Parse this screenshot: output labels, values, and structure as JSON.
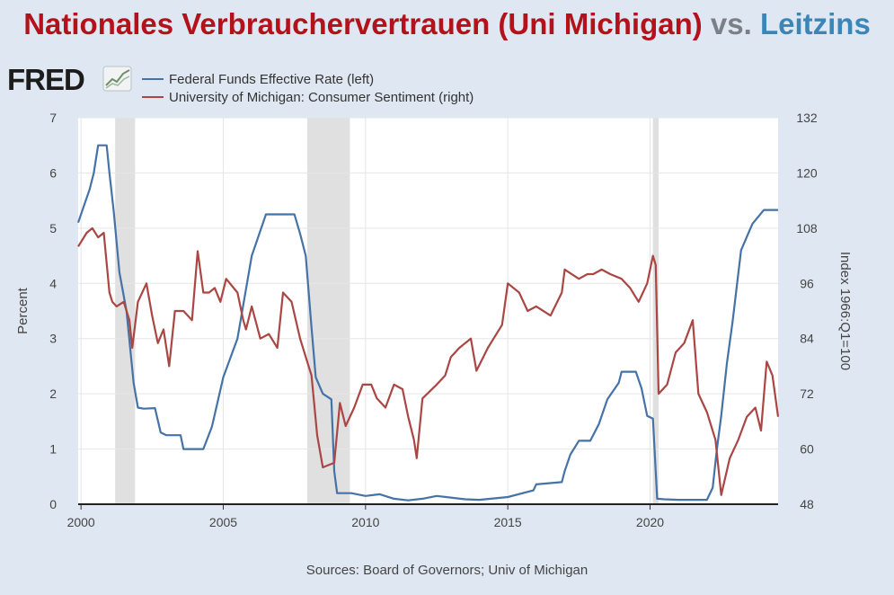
{
  "header": {
    "title_part1": "Nationales Verbrauchervertrauen (Uni Michigan)",
    "title_part2": "vs.",
    "title_part3": "Leitzins"
  },
  "logo": {
    "text": "FRED",
    "icon": "line-chart-icon"
  },
  "source": "Sources: Board of Governors; Univ of Michigan",
  "colors": {
    "title_red": "#b3121a",
    "title_gray": "#7b7f86",
    "title_blue": "#3a86b7",
    "fedfunds": "#4572a7",
    "sentiment": "#aa4643",
    "recession": "#e0e0e0"
  },
  "chart_data": {
    "type": "line",
    "left_axis": {
      "label": "Percent",
      "range": [
        0,
        7
      ],
      "ticks": [
        "0",
        "1",
        "2",
        "3",
        "4",
        "5",
        "6",
        "7"
      ]
    },
    "right_axis": {
      "label": "Index 1966:Q1=100",
      "range": [
        48,
        132
      ],
      "ticks": [
        "48",
        "60",
        "72",
        "84",
        "96",
        "108",
        "120",
        "132"
      ]
    },
    "x_axis": {
      "range": [
        1999.9,
        2024.5
      ],
      "ticks": [
        {
          "x": 2000,
          "label": "2000"
        },
        {
          "x": 2005,
          "label": "2005"
        },
        {
          "x": 2010,
          "label": "2010"
        },
        {
          "x": 2015,
          "label": "2015"
        },
        {
          "x": 2020,
          "label": "2020"
        }
      ]
    },
    "grid": true,
    "recessions": [
      [
        2001.2,
        2001.9
      ],
      [
        2007.95,
        2009.45
      ],
      [
        2020.1,
        2020.3
      ]
    ],
    "series": [
      {
        "name": "Federal Funds Effective Rate (left)",
        "axis": "left",
        "x": [
          1999.9,
          2000.1,
          2000.3,
          2000.45,
          2000.6,
          2000.9,
          2001.0,
          2001.15,
          2001.35,
          2001.6,
          2001.85,
          2002.0,
          2002.2,
          2002.6,
          2002.8,
          2003.0,
          2003.5,
          2003.6,
          2004.0,
          2004.3,
          2004.6,
          2005.0,
          2005.5,
          2006.0,
          2006.5,
          2007.0,
          2007.5,
          2007.7,
          2007.9,
          2008.1,
          2008.25,
          2008.5,
          2008.8,
          2008.9,
          2009.0,
          2009.5,
          2010.0,
          2010.5,
          2011.0,
          2011.5,
          2012.0,
          2012.5,
          2013.0,
          2013.5,
          2014.0,
          2015.0,
          2015.9,
          2016.0,
          2016.9,
          2017.0,
          2017.2,
          2017.5,
          2017.9,
          2018.2,
          2018.5,
          2018.9,
          2019.0,
          2019.5,
          2019.7,
          2019.9,
          2020.1,
          2020.25,
          2020.5,
          2021.0,
          2021.5,
          2022.0,
          2022.2,
          2022.35,
          2022.5,
          2022.7,
          2022.9,
          2023.2,
          2023.6,
          2024.0,
          2024.5
        ],
        "values": [
          5.1,
          5.4,
          5.7,
          6.0,
          6.5,
          6.5,
          6.0,
          5.3,
          4.2,
          3.5,
          2.2,
          1.75,
          1.73,
          1.74,
          1.3,
          1.25,
          1.25,
          1.0,
          1.0,
          1.0,
          1.4,
          2.3,
          3.0,
          4.5,
          5.25,
          5.25,
          5.25,
          4.9,
          4.5,
          3.2,
          2.3,
          2.0,
          1.9,
          0.6,
          0.2,
          0.2,
          0.15,
          0.18,
          0.1,
          0.07,
          0.1,
          0.15,
          0.12,
          0.09,
          0.08,
          0.13,
          0.25,
          0.36,
          0.4,
          0.6,
          0.9,
          1.15,
          1.15,
          1.45,
          1.9,
          2.2,
          2.4,
          2.4,
          2.1,
          1.6,
          1.55,
          0.1,
          0.09,
          0.08,
          0.08,
          0.08,
          0.3,
          1.0,
          1.6,
          2.55,
          3.3,
          4.6,
          5.08,
          5.33,
          5.33
        ]
      },
      {
        "name": "University of Michigan: Consumer Sentiment (right)",
        "axis": "right",
        "x": [
          1999.9,
          2000.2,
          2000.4,
          2000.6,
          2000.8,
          2001.0,
          2001.1,
          2001.25,
          2001.5,
          2001.7,
          2001.8,
          2002.0,
          2002.3,
          2002.5,
          2002.7,
          2002.9,
          2003.1,
          2003.3,
          2003.6,
          2003.9,
          2004.1,
          2004.3,
          2004.5,
          2004.7,
          2004.9,
          2005.1,
          2005.5,
          2005.7,
          2005.8,
          2006.0,
          2006.3,
          2006.6,
          2006.9,
          2007.1,
          2007.4,
          2007.7,
          2007.9,
          2008.1,
          2008.3,
          2008.5,
          2008.9,
          2009.1,
          2009.3,
          2009.6,
          2009.9,
          2010.2,
          2010.4,
          2010.7,
          2011.0,
          2011.3,
          2011.5,
          2011.7,
          2011.8,
          2012.0,
          2012.5,
          2012.8,
          2013.0,
          2013.3,
          2013.7,
          2013.9,
          2014.3,
          2014.8,
          2015.0,
          2015.4,
          2015.7,
          2016.0,
          2016.5,
          2016.9,
          2017.0,
          2017.5,
          2017.8,
          2018.0,
          2018.3,
          2018.6,
          2019.0,
          2019.3,
          2019.6,
          2019.9,
          2020.1,
          2020.2,
          2020.3,
          2020.6,
          2020.9,
          2021.2,
          2021.5,
          2021.7,
          2022.0,
          2022.3,
          2022.5,
          2022.8,
          2023.1,
          2023.4,
          2023.7,
          2023.9,
          2024.1,
          2024.3,
          2024.5
        ],
        "values": [
          104,
          107,
          108,
          106,
          107,
          94,
          92,
          91,
          92,
          88,
          82,
          92,
          96,
          89,
          83,
          86,
          78,
          90,
          90,
          88,
          103,
          94,
          94,
          95,
          92,
          97,
          94,
          88,
          86,
          91,
          84,
          85,
          82,
          94,
          92,
          84,
          80,
          76,
          63,
          56,
          57,
          70,
          65,
          69,
          74,
          74,
          71,
          69,
          74,
          73,
          67,
          62,
          58,
          71,
          74,
          76,
          80,
          82,
          84,
          77,
          82,
          87,
          96,
          94,
          90,
          91,
          89,
          94,
          99,
          97,
          98,
          98,
          99,
          98,
          97,
          95,
          92,
          96,
          102,
          100,
          72,
          74,
          81,
          83,
          88,
          72,
          68,
          62,
          50,
          58,
          62,
          67,
          69,
          64,
          79,
          76,
          67
        ]
      }
    ]
  }
}
